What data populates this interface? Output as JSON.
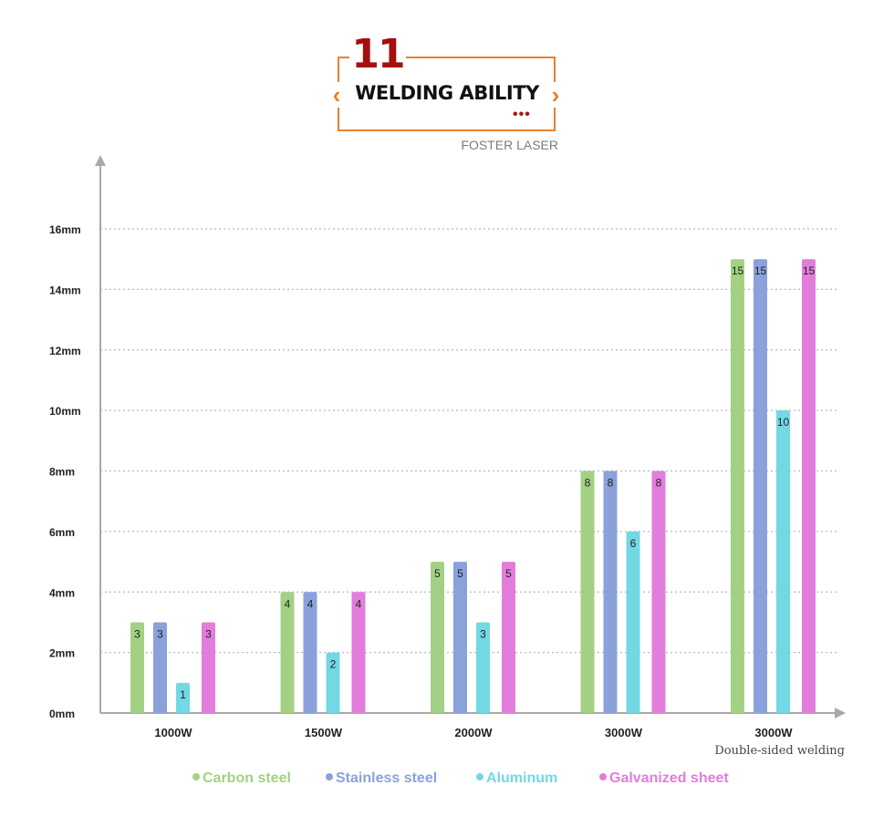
{
  "header": {
    "number": "11",
    "title": "WELDING ABILITY",
    "subtitle": "FOSTER LASER",
    "accent_color": "#e8812a",
    "number_color": "#a50f0f"
  },
  "chart_data": {
    "type": "bar",
    "title": "WELDING ABILITY",
    "categories": [
      "1000W",
      "1500W",
      "2000W",
      "3000W",
      "3000W"
    ],
    "category_notes": [
      "",
      "",
      "",
      "",
      "Double-sided welding"
    ],
    "y_tick_labels": [
      "0mm",
      "2mm",
      "4mm",
      "6mm",
      "8mm",
      "10mm",
      "12mm",
      "14mm",
      "16mm"
    ],
    "ylim": [
      0,
      16
    ],
    "grid": "horizontal dotted",
    "legend_position": "bottom",
    "series": [
      {
        "name": "Carbon steel",
        "color": "#a3d184",
        "values": [
          3,
          4,
          5,
          8,
          15
        ]
      },
      {
        "name": "Stainless steel",
        "color": "#8aa1db",
        "values": [
          3,
          4,
          5,
          8,
          15
        ]
      },
      {
        "name": "Aluminum",
        "color": "#72d8e4",
        "values": [
          1,
          2,
          3,
          6,
          10
        ]
      },
      {
        "name": "Galvanized sheet",
        "color": "#e27ddc",
        "values": [
          3,
          4,
          5,
          8,
          15
        ]
      }
    ]
  }
}
